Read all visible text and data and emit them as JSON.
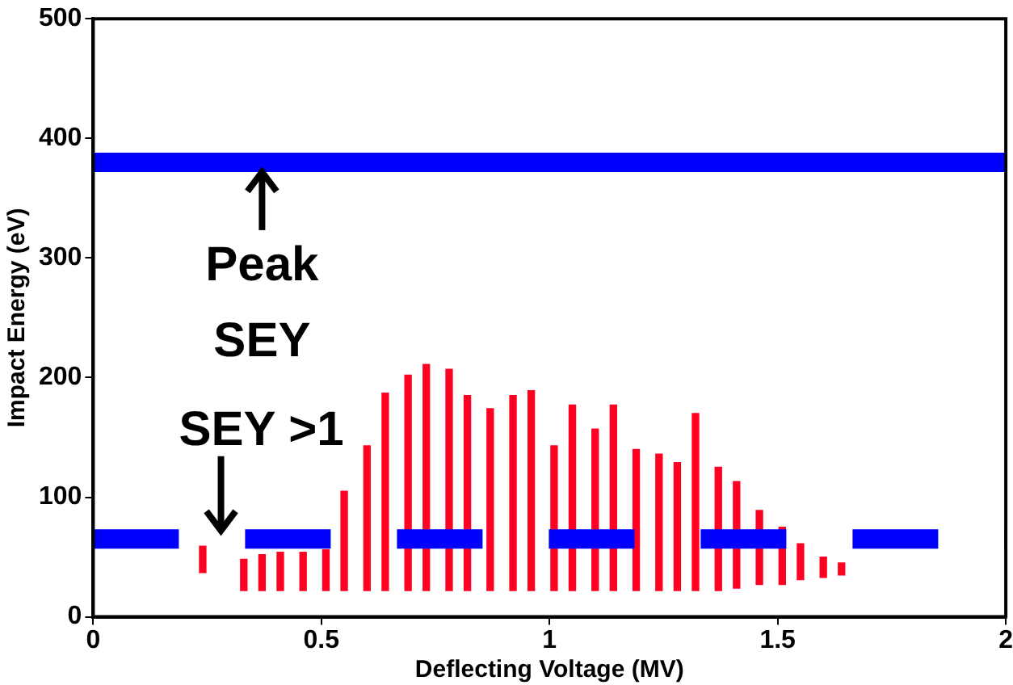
{
  "chart_data": {
    "type": "bar",
    "xlabel": "Deflecting Voltage (MV)",
    "ylabel": "Impact Energy (eV)",
    "x": [
      0.24,
      0.33,
      0.37,
      0.41,
      0.46,
      0.51,
      0.55,
      0.6,
      0.64,
      0.69,
      0.73,
      0.78,
      0.82,
      0.87,
      0.92,
      0.96,
      1.01,
      1.05,
      1.1,
      1.14,
      1.19,
      1.24,
      1.28,
      1.32,
      1.37,
      1.41,
      1.46,
      1.51,
      1.55,
      1.6,
      1.64
    ],
    "base": [
      37,
      22,
      22,
      22,
      22,
      22,
      22,
      22,
      22,
      22,
      22,
      22,
      22,
      22,
      22,
      22,
      22,
      22,
      22,
      22,
      22,
      22,
      22,
      22,
      22,
      24,
      27,
      27,
      31,
      33,
      35
    ],
    "values": [
      22,
      26,
      30,
      32,
      32,
      34,
      83,
      121,
      165,
      180,
      189,
      185,
      163,
      152,
      163,
      167,
      121,
      155,
      135,
      155,
      118,
      114,
      107,
      148,
      103,
      89,
      62,
      48,
      30,
      17,
      10
    ],
    "color": "#ff0022",
    "xlim": [
      0,
      2
    ],
    "xticks": [
      0,
      0.5,
      1,
      1.5,
      2
    ],
    "ylim": [
      0,
      500
    ],
    "yticks": [
      0,
      100,
      200,
      300,
      400,
      500
    ],
    "ref_lines": [
      {
        "axis": "y",
        "value": 380,
        "color": "#0000ff",
        "line_style": "solid"
      },
      {
        "axis": "y",
        "value": 65,
        "color": "#0000ff",
        "line_style": "dashed"
      }
    ],
    "annotations": [
      {
        "text": "Peak SEY",
        "x": 0.37,
        "y": 380
      },
      {
        "text": "SEY >1",
        "x": 0.28,
        "y": 64
      }
    ]
  }
}
